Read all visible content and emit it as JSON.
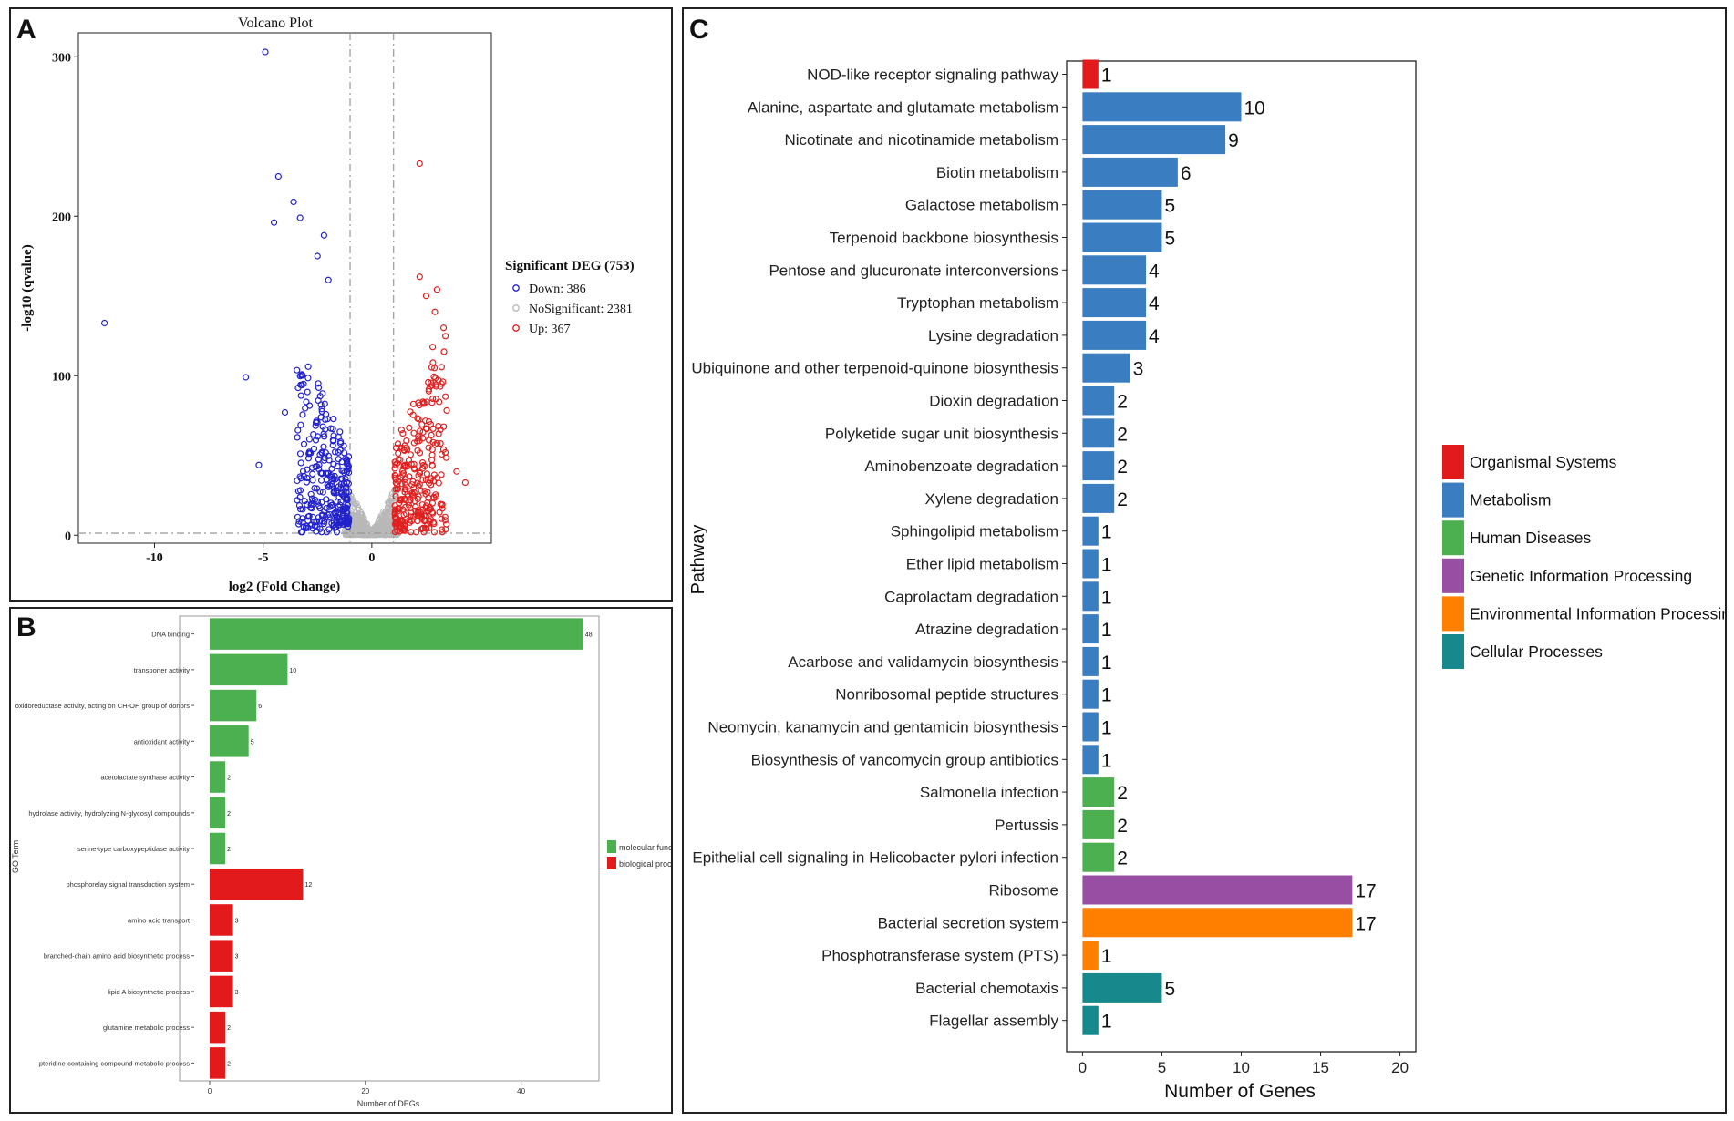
{
  "panels": {
    "a": "A",
    "b": "B",
    "c": "C"
  },
  "colors": {
    "down": "#2222cc",
    "nonsig": "#b8b8b8",
    "up": "#e02020",
    "molecular_function": "#4caf50",
    "biological_process": "#e31a1c",
    "organismal_systems": "#e31a1c",
    "metabolism": "#3a7dc0",
    "human_diseases": "#4caf50",
    "genetic_information_processing": "#984ea3",
    "environmental_information_processing": "#ff7f00",
    "cellular_processes": "#17898c"
  },
  "chart_data": [
    {
      "id": "A",
      "type": "scatter",
      "title": "Volcano Plot",
      "xlabel": "log2 (Fold Change)",
      "ylabel": "-log10 (qvalue)",
      "xlim": [
        -13.5,
        5.5
      ],
      "ylim": [
        -5,
        315
      ],
      "xticks": [
        -10,
        -5,
        0
      ],
      "yticks": [
        0,
        100,
        200,
        300
      ],
      "thresholds": {
        "x": [
          -1,
          1
        ],
        "y": 1.3
      },
      "legend": {
        "title": "Significant DEG (753)",
        "entries": [
          {
            "label": "Down: 386",
            "color_key": "down"
          },
          {
            "label": "NoSignificant: 2381",
            "color_key": "nonsig"
          },
          {
            "label": "Up: 367",
            "color_key": "up"
          }
        ]
      },
      "series": [
        {
          "name": "Down",
          "count": 386,
          "color_key": "down",
          "notable_points": [
            [
              -4.9,
              303
            ],
            [
              -4.3,
              225
            ],
            [
              -3.6,
              209
            ],
            [
              -3.3,
              199
            ],
            [
              -4.5,
              196
            ],
            [
              -2.2,
              188
            ],
            [
              -12.3,
              133
            ],
            [
              -5.8,
              99
            ],
            [
              -4.0,
              77
            ],
            [
              -5.2,
              44
            ],
            [
              -2.5,
              175
            ],
            [
              -2.0,
              160
            ]
          ]
        },
        {
          "name": "NoSignificant",
          "count": 2381,
          "color_key": "nonsig"
        },
        {
          "name": "Up",
          "count": 367,
          "color_key": "up",
          "notable_points": [
            [
              2.2,
              233
            ],
            [
              2.2,
              162
            ],
            [
              3.0,
              154
            ],
            [
              2.9,
              140
            ],
            [
              3.3,
              130
            ],
            [
              2.5,
              150
            ],
            [
              3.2,
              95
            ],
            [
              4.3,
              33
            ],
            [
              3.9,
              40
            ],
            [
              2.8,
              118
            ]
          ]
        }
      ]
    },
    {
      "id": "B",
      "type": "bar",
      "orientation": "horizontal",
      "xlabel": "Number of DEGs",
      "ylabel": "GO Term",
      "xlim": [
        0,
        50
      ],
      "xticks": [
        0,
        20,
        40
      ],
      "categories": [
        "DNA binding",
        "transporter activity",
        "oxidoreductase activity, acting on CH-OH group of donors",
        "antioxidant activity",
        "acetolactate synthase activity",
        "hydrolase activity, hydrolyzing N-glycosyl compounds",
        "serine-type carboxypeptidase activity",
        "phosphorelay signal transduction system",
        "amino acid transport",
        "branched-chain amino acid biosynthetic process",
        "lipid A biosynthetic process",
        "glutamine metabolic process",
        "pteridine-containing compound metabolic process"
      ],
      "values": [
        48,
        10,
        6,
        5,
        2,
        2,
        2,
        12,
        3,
        3,
        3,
        2,
        2
      ],
      "groups": [
        "molecular function",
        "molecular function",
        "molecular function",
        "molecular function",
        "molecular function",
        "molecular function",
        "molecular function",
        "biological process",
        "biological process",
        "biological process",
        "biological process",
        "biological process",
        "biological process"
      ],
      "legend": [
        {
          "label": "molecular function",
          "color_key": "molecular_function"
        },
        {
          "label": "biological process",
          "color_key": "biological_process"
        }
      ]
    },
    {
      "id": "C",
      "type": "bar",
      "orientation": "horizontal",
      "xlabel": "Number of Genes",
      "ylabel": "Pathway",
      "xlim": [
        -1,
        21
      ],
      "xticks": [
        0,
        5,
        10,
        15,
        20
      ],
      "categories": [
        "NOD-like receptor signaling pathway",
        "Alanine, aspartate and glutamate metabolism",
        "Nicotinate and nicotinamide metabolism",
        "Biotin metabolism",
        "Galactose metabolism",
        "Terpenoid backbone biosynthesis",
        "Pentose and glucuronate interconversions",
        "Tryptophan metabolism",
        "Lysine degradation",
        "Ubiquinone and other terpenoid-quinone biosynthesis",
        "Dioxin degradation",
        "Polyketide sugar unit biosynthesis",
        "Aminobenzoate degradation",
        "Xylene degradation",
        "Sphingolipid metabolism",
        "Ether lipid metabolism",
        "Caprolactam degradation",
        "Atrazine degradation",
        "Acarbose and validamycin biosynthesis",
        "Nonribosomal peptide structures",
        "Neomycin, kanamycin and gentamicin biosynthesis",
        "Biosynthesis of vancomycin group antibiotics",
        "Salmonella infection",
        "Pertussis",
        "Epithelial cell signaling in Helicobacter pylori infection",
        "Ribosome",
        "Bacterial secretion system",
        "Phosphotransferase system (PTS)",
        "Bacterial chemotaxis",
        "Flagellar assembly"
      ],
      "values": [
        1,
        10,
        9,
        6,
        5,
        5,
        4,
        4,
        4,
        3,
        2,
        2,
        2,
        2,
        1,
        1,
        1,
        1,
        1,
        1,
        1,
        1,
        2,
        2,
        2,
        17,
        17,
        1,
        5,
        1
      ],
      "groups": [
        "organismal_systems",
        "metabolism",
        "metabolism",
        "metabolism",
        "metabolism",
        "metabolism",
        "metabolism",
        "metabolism",
        "metabolism",
        "metabolism",
        "metabolism",
        "metabolism",
        "metabolism",
        "metabolism",
        "metabolism",
        "metabolism",
        "metabolism",
        "metabolism",
        "metabolism",
        "metabolism",
        "metabolism",
        "metabolism",
        "human_diseases",
        "human_diseases",
        "human_diseases",
        "genetic_information_processing",
        "environmental_information_processing",
        "environmental_information_processing",
        "cellular_processes",
        "cellular_processes"
      ],
      "legend": [
        {
          "label": "Organismal Systems",
          "color_key": "organismal_systems"
        },
        {
          "label": "Metabolism",
          "color_key": "metabolism"
        },
        {
          "label": "Human Diseases",
          "color_key": "human_diseases"
        },
        {
          "label": "Genetic Information Processing",
          "color_key": "genetic_information_processing"
        },
        {
          "label": "Environmental Information Processing",
          "color_key": "environmental_information_processing"
        },
        {
          "label": "Cellular Processes",
          "color_key": "cellular_processes"
        }
      ]
    }
  ]
}
